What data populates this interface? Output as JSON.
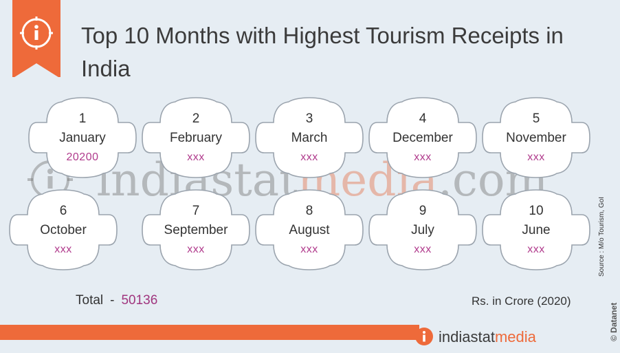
{
  "title": "Top 10 Months with Highest Tourism Receipts in India",
  "watermark": {
    "prefix": "indiastat",
    "accent": "media",
    "suffix": ".com"
  },
  "cards": [
    {
      "rank": "1",
      "month": "January",
      "value": "20200"
    },
    {
      "rank": "2",
      "month": "February",
      "value": "xxx"
    },
    {
      "rank": "3",
      "month": "March",
      "value": "xxx"
    },
    {
      "rank": "4",
      "month": "December",
      "value": "xxx"
    },
    {
      "rank": "5",
      "month": "November",
      "value": "xxx"
    },
    {
      "rank": "6",
      "month": "October",
      "value": "xxx"
    },
    {
      "rank": "7",
      "month": "September",
      "value": "xxx"
    },
    {
      "rank": "8",
      "month": "August",
      "value": "xxx"
    },
    {
      "rank": "9",
      "month": "July",
      "value": "xxx"
    },
    {
      "rank": "10",
      "month": "June",
      "value": "xxx"
    }
  ],
  "total": {
    "label": "Total",
    "dash": "-",
    "value": "50136"
  },
  "units": "Rs. in Crore (2020)",
  "source": "Source : M/o Tourism, GoI",
  "brand_vertical": "© Datanet",
  "footer_logo": {
    "prefix": "indiastat",
    "accent": "media"
  },
  "colors": {
    "accent": "#ee6a3a",
    "value": "#b03a8c",
    "background": "#e6edf3"
  }
}
